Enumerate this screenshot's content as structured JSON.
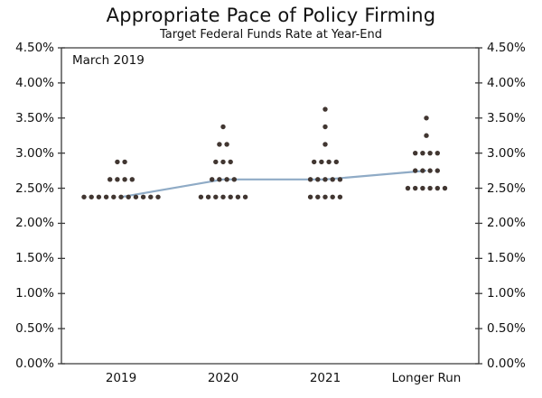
{
  "title": "Appropriate Pace of Policy Firming",
  "subtitle": "Target Federal Funds Rate at Year-End",
  "annotation": "March 2019",
  "chart_data": {
    "type": "scatter",
    "title": "Appropriate Pace of Policy Firming",
    "subtitle": "Target Federal Funds Rate at Year-End",
    "annotation": "March 2019",
    "categories": [
      "2019",
      "2020",
      "2021",
      "Longer Run"
    ],
    "ylabel": "",
    "xlabel": "",
    "ylim": [
      0,
      4.5
    ],
    "y_tick_step": 0.5,
    "y_ticks": [
      "4.50%",
      "4.00%",
      "3.50%",
      "3.00%",
      "2.50%",
      "2.00%",
      "1.50%",
      "1.00%",
      "0.50%",
      "0.00%"
    ],
    "y_axis_sides": "both",
    "grid": false,
    "legend_position": "none",
    "dot_columns": [
      {
        "category": "2019",
        "dots": [
          {
            "rate": 2.375,
            "count": 11
          },
          {
            "rate": 2.625,
            "count": 4
          },
          {
            "rate": 2.875,
            "count": 2
          }
        ]
      },
      {
        "category": "2020",
        "dots": [
          {
            "rate": 2.375,
            "count": 7
          },
          {
            "rate": 2.625,
            "count": 4
          },
          {
            "rate": 2.875,
            "count": 3
          },
          {
            "rate": 3.125,
            "count": 2
          },
          {
            "rate": 3.375,
            "count": 1
          }
        ]
      },
      {
        "category": "2021",
        "dots": [
          {
            "rate": 2.375,
            "count": 5
          },
          {
            "rate": 2.625,
            "count": 5
          },
          {
            "rate": 2.875,
            "count": 4
          },
          {
            "rate": 3.125,
            "count": 1
          },
          {
            "rate": 3.375,
            "count": 1
          },
          {
            "rate": 3.625,
            "count": 1
          }
        ]
      },
      {
        "category": "Longer Run",
        "dots": [
          {
            "rate": 2.5,
            "count": 6
          },
          {
            "rate": 2.75,
            "count": 4
          },
          {
            "rate": 3.0,
            "count": 4
          },
          {
            "rate": 3.25,
            "count": 1
          },
          {
            "rate": 3.5,
            "count": 1
          }
        ]
      }
    ],
    "series": [
      {
        "name": "median-line",
        "values": [
          2.375,
          2.625,
          2.625,
          2.75
        ]
      }
    ],
    "colors": {
      "dot": "#413631",
      "median_line": "#8fabc6",
      "axis": "#3a3a3a",
      "text": "#111111",
      "background": "#ffffff"
    }
  }
}
